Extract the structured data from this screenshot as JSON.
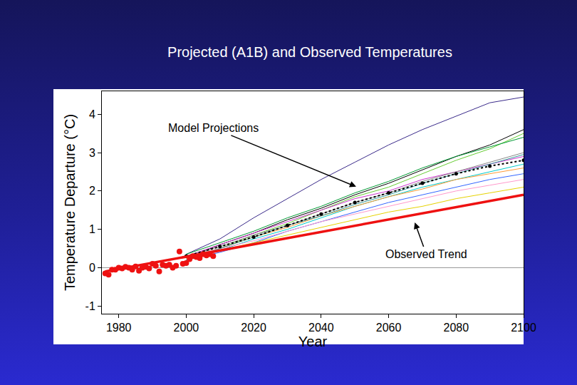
{
  "chart_data": {
    "type": "line",
    "title": "Projected (A1B) and Observed Temperatures",
    "x_label": "Year",
    "y_label": "Temperature Departure (°C)",
    "xlim": [
      1975,
      2100
    ],
    "xticks": [
      1980,
      2000,
      2020,
      2040,
      2060,
      2080,
      2100
    ],
    "ylim": [
      -1.2,
      4.6
    ],
    "yticks": [
      -1,
      0,
      1,
      2,
      3,
      4
    ],
    "grid": false,
    "annotations": [
      "Model Projections",
      "Observed Trend"
    ],
    "series": [
      {
        "color": "#3a2a8a",
        "line_style": "solid",
        "marker": "none",
        "x": [
          2000,
          2010,
          2020,
          2030,
          2040,
          2050,
          2060,
          2070,
          2080,
          2090,
          2100
        ],
        "values": [
          0.35,
          0.75,
          1.3,
          1.8,
          2.3,
          2.75,
          3.2,
          3.6,
          3.95,
          4.3,
          4.45
        ]
      },
      {
        "color": "#000000",
        "line_style": "solid",
        "marker": "none",
        "x": [
          2000,
          2010,
          2020,
          2030,
          2040,
          2050,
          2060,
          2070,
          2080,
          2090,
          2100
        ],
        "values": [
          0.25,
          0.6,
          0.9,
          1.25,
          1.55,
          1.9,
          2.2,
          2.55,
          2.9,
          3.2,
          3.6
        ]
      },
      {
        "color": "#66cc33",
        "line_style": "solid",
        "marker": "none",
        "x": [
          2000,
          2010,
          2020,
          2030,
          2040,
          2050,
          2060,
          2070,
          2080,
          2090,
          2100
        ],
        "values": [
          0.3,
          0.5,
          0.85,
          1.15,
          1.5,
          1.85,
          2.1,
          2.45,
          2.8,
          3.1,
          3.5
        ]
      },
      {
        "color": "#00cccc",
        "line_style": "solid",
        "marker": "none",
        "x": [
          2000,
          2010,
          2020,
          2030,
          2040,
          2050,
          2060,
          2070,
          2080,
          2090,
          2100
        ],
        "values": [
          0.2,
          0.45,
          0.75,
          1.0,
          1.3,
          1.6,
          1.85,
          2.1,
          2.3,
          2.5,
          2.7
        ]
      },
      {
        "color": "#cc33cc",
        "line_style": "solid",
        "marker": "none",
        "x": [
          2000,
          2010,
          2020,
          2030,
          2040,
          2050,
          2060,
          2070,
          2080,
          2090,
          2100
        ],
        "values": [
          0.3,
          0.6,
          0.9,
          1.2,
          1.5,
          1.8,
          2.0,
          2.3,
          2.5,
          2.7,
          2.9
        ]
      },
      {
        "color": "#ff9933",
        "line_style": "solid",
        "marker": "none",
        "x": [
          2000,
          2010,
          2020,
          2030,
          2040,
          2050,
          2060,
          2070,
          2080,
          2090,
          2100
        ],
        "values": [
          0.25,
          0.5,
          0.8,
          1.05,
          1.35,
          1.6,
          1.85,
          2.05,
          2.3,
          2.45,
          2.6
        ]
      },
      {
        "color": "#3366ff",
        "line_style": "solid",
        "marker": "none",
        "x": [
          2000,
          2010,
          2020,
          2030,
          2040,
          2050,
          2060,
          2070,
          2080,
          2090,
          2100
        ],
        "values": [
          0.2,
          0.4,
          0.65,
          0.95,
          1.2,
          1.45,
          1.7,
          1.9,
          2.1,
          2.3,
          2.45
        ]
      },
      {
        "color": "#ff99cc",
        "line_style": "solid",
        "marker": "none",
        "x": [
          2000,
          2010,
          2020,
          2030,
          2040,
          2050,
          2060,
          2070,
          2080,
          2090,
          2100
        ],
        "values": [
          0.3,
          0.5,
          0.7,
          0.95,
          1.2,
          1.4,
          1.6,
          1.8,
          2.0,
          2.15,
          2.3
        ]
      },
      {
        "color": "#e6d200",
        "line_style": "solid",
        "marker": "none",
        "x": [
          2000,
          2010,
          2020,
          2030,
          2040,
          2050,
          2060,
          2070,
          2080,
          2090,
          2100
        ],
        "values": [
          0.25,
          0.45,
          0.65,
          0.85,
          1.05,
          1.25,
          1.45,
          1.6,
          1.8,
          1.95,
          2.1
        ]
      },
      {
        "color": "#009933",
        "line_style": "solid",
        "marker": "none",
        "x": [
          2000,
          2010,
          2020,
          2030,
          2040,
          2050,
          2060,
          2070,
          2080,
          2090,
          2100
        ],
        "values": [
          0.35,
          0.65,
          0.95,
          1.3,
          1.6,
          1.95,
          2.25,
          2.6,
          2.9,
          3.15,
          3.4
        ]
      },
      {
        "color": "#339999",
        "line_style": "solid",
        "marker": "none",
        "x": [
          2000,
          2010,
          2020,
          2030,
          2040,
          2050,
          2060,
          2070,
          2080,
          2090,
          2100
        ],
        "values": [
          0.2,
          0.5,
          0.8,
          1.1,
          1.35,
          1.65,
          1.9,
          2.2,
          2.45,
          2.7,
          2.95
        ]
      },
      {
        "color": "#888888",
        "line_style": "solid",
        "marker": "none",
        "x": [
          2000,
          2010,
          2020,
          2030,
          2040,
          2050,
          2060,
          2070,
          2080,
          2090,
          2100
        ],
        "values": [
          0.3,
          0.55,
          0.85,
          1.1,
          1.4,
          1.7,
          1.95,
          2.25,
          2.5,
          2.75,
          3.0
        ]
      },
      {
        "color": "#000000",
        "line_style": "dotted",
        "marker": "circle",
        "x": [
          2000,
          2010,
          2020,
          2030,
          2040,
          2050,
          2060,
          2070,
          2080,
          2090,
          2100
        ],
        "values": [
          0.3,
          0.55,
          0.8,
          1.1,
          1.4,
          1.7,
          1.95,
          2.2,
          2.45,
          2.65,
          2.8
        ]
      },
      {
        "color": "#ee1111",
        "line_style": "thick",
        "marker": "none",
        "x": [
          1976,
          2100
        ],
        "values": [
          -0.1,
          1.9
        ]
      },
      {
        "type": "scatter",
        "color": "#ee1111",
        "line_style": "none",
        "marker": "circle",
        "x": [
          1976,
          1977,
          1978,
          1979,
          1980,
          1981,
          1982,
          1983,
          1984,
          1985,
          1986,
          1987,
          1988,
          1989,
          1990,
          1991,
          1992,
          1993,
          1994,
          1995,
          1996,
          1997,
          1998,
          1999,
          2000,
          2001,
          2002,
          2003,
          2004,
          2005,
          2006,
          2007,
          2008
        ],
        "values": [
          -0.15,
          -0.18,
          -0.05,
          -0.05,
          0.0,
          -0.02,
          0.02,
          0.0,
          -0.05,
          0.03,
          -0.08,
          0.0,
          0.02,
          -0.02,
          0.1,
          0.05,
          -0.1,
          0.08,
          0.05,
          0.08,
          0.0,
          0.05,
          0.42,
          0.1,
          0.12,
          0.22,
          0.3,
          0.28,
          0.25,
          0.35,
          0.32,
          0.35,
          0.3
        ]
      }
    ]
  }
}
